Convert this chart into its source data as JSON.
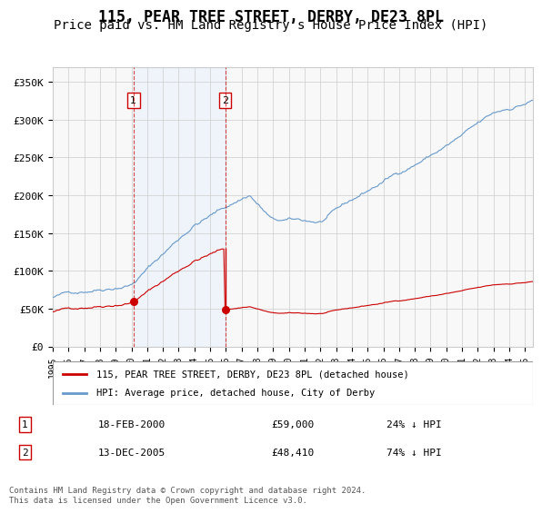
{
  "title": "115, PEAR TREE STREET, DERBY, DE23 8PL",
  "subtitle": "Price paid vs. HM Land Registry's House Price Index (HPI)",
  "title_fontsize": 12,
  "subtitle_fontsize": 10,
  "hpi_color": "#6699cc",
  "price_color": "#cc0000",
  "marker_color": "#cc0000",
  "grid_color": "#cccccc",
  "bg_color": "#ffffff",
  "plot_bg_color": "#f8f8f8",
  "highlight_bg": "#ddeeff",
  "ylim": [
    0,
    370000
  ],
  "yticks": [
    0,
    50000,
    100000,
    150000,
    200000,
    250000,
    300000,
    350000
  ],
  "ytick_labels": [
    "£0",
    "£50K",
    "£100K",
    "£150K",
    "£200K",
    "£250K",
    "£300K",
    "£350K"
  ],
  "sale1_date": 2000.13,
  "sale1_price": 59000,
  "sale1_label": "1",
  "sale1_display": "18-FEB-2000",
  "sale1_amount": "£59,000",
  "sale1_hpi": "24% ↓ HPI",
  "sale2_date": 2005.95,
  "sale2_price": 48410,
  "sale2_label": "2",
  "sale2_display": "13-DEC-2005",
  "sale2_amount": "£48,410",
  "sale2_hpi": "74% ↓ HPI",
  "legend_label1": "115, PEAR TREE STREET, DERBY, DE23 8PL (detached house)",
  "legend_label2": "HPI: Average price, detached house, City of Derby",
  "footer": "Contains HM Land Registry data © Crown copyright and database right 2024.\nThis data is licensed under the Open Government Licence v3.0.",
  "xstart": 1995.0,
  "xend": 2025.5
}
